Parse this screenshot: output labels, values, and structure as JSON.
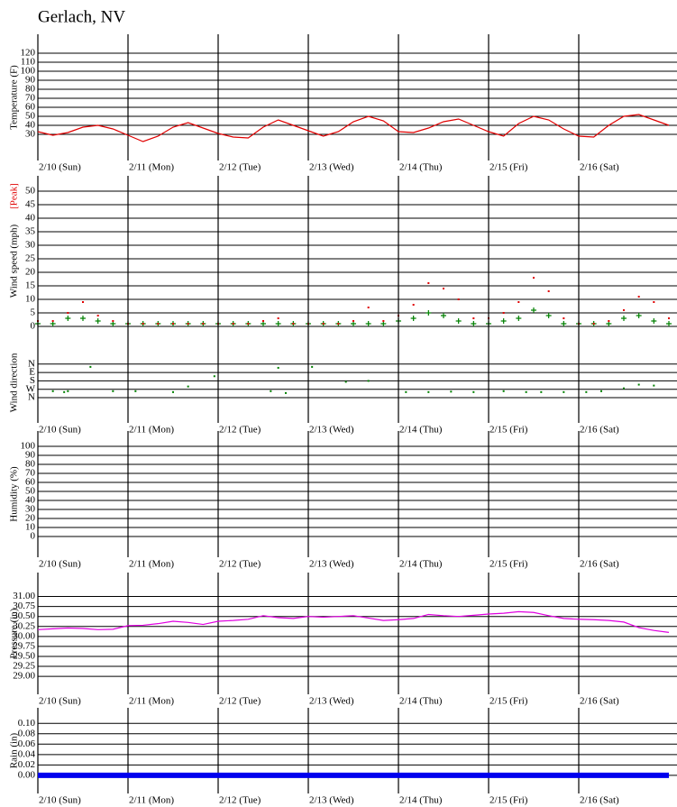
{
  "title": "Gerlach, NV",
  "chart_data": [
    {
      "type": "line",
      "xlim": [
        0,
        168
      ],
      "ylim": [
        1,
        141
      ],
      "yticks": [
        30,
        40,
        50,
        60,
        70,
        80,
        90,
        100,
        110,
        120
      ],
      "xticks": [
        {
          "value": 0,
          "label": "2/10 (Sun)"
        },
        {
          "value": 24,
          "label": "2/11 (Mon)"
        },
        {
          "value": 48,
          "label": "2/12 (Tue)"
        },
        {
          "value": 72,
          "label": "2/13 (Wed)"
        },
        {
          "value": 96,
          "label": "2/14 (Thu)"
        },
        {
          "value": 120,
          "label": "2/15 (Fri)"
        },
        {
          "value": 144,
          "label": "2/16 (Sat)"
        }
      ],
      "x": [
        0,
        4,
        8,
        12,
        16,
        20,
        24,
        28,
        32,
        36,
        40,
        44,
        48,
        52,
        56,
        60,
        64,
        68,
        72,
        76,
        80,
        84,
        88,
        92,
        96,
        100,
        104,
        108,
        112,
        116,
        120,
        124,
        128,
        132,
        136,
        140,
        144,
        148,
        152,
        156,
        160,
        164,
        168
      ],
      "series": [
        {
          "name": "Temperature (F)",
          "color": "#e00000",
          "values": [
            33,
            29,
            32,
            38,
            40,
            36,
            29,
            22,
            28,
            38,
            43,
            37,
            31,
            27,
            26,
            38,
            46,
            40,
            34,
            28,
            33,
            44,
            50,
            45,
            33,
            32,
            37,
            44,
            47,
            40,
            33,
            28,
            42,
            50,
            46,
            36,
            28,
            27,
            40,
            50,
            52,
            46,
            40
          ]
        }
      ]
    },
    {
      "type": "scatter",
      "xlim": [
        0,
        168
      ],
      "ylim": [
        0,
        55
      ],
      "yticks": [
        0,
        5,
        10,
        15,
        20,
        25,
        30,
        35,
        40,
        45,
        50
      ],
      "x": [
        0,
        4,
        8,
        12,
        16,
        20,
        24,
        28,
        32,
        36,
        40,
        44,
        48,
        52,
        56,
        60,
        64,
        68,
        72,
        76,
        80,
        84,
        88,
        92,
        96,
        100,
        104,
        108,
        112,
        116,
        120,
        124,
        128,
        132,
        136,
        140,
        144,
        148,
        152,
        156,
        160,
        164,
        168
      ],
      "series": [
        {
          "name": "Wind speed (mph)",
          "color": "#008000",
          "values": [
            1,
            1,
            3,
            3,
            2,
            1,
            1,
            1,
            1,
            1,
            1,
            1,
            1,
            1,
            1,
            1,
            1,
            1,
            1,
            1,
            1,
            1,
            1,
            1,
            2,
            3,
            5,
            4,
            2,
            1,
            1,
            2,
            3,
            6,
            4,
            1,
            1,
            1,
            1,
            3,
            4,
            2,
            1
          ]
        },
        {
          "name": "[Peak]",
          "color": "#e00000",
          "values": [
            2,
            2,
            5,
            9,
            4,
            2,
            1,
            1,
            1,
            1,
            1,
            1,
            1,
            1,
            1,
            2,
            3,
            1,
            1,
            1,
            1,
            2,
            7,
            2,
            4,
            8,
            16,
            14,
            10,
            3,
            3,
            5,
            9,
            18,
            13,
            3,
            1,
            1,
            2,
            6,
            11,
            9,
            3
          ]
        }
      ]
    },
    {
      "type": "scatter",
      "xlim": [
        0,
        168
      ],
      "ylim": [
        -270,
        590
      ],
      "yticks": [
        {
          "value": 0,
          "label": "N"
        },
        {
          "value": 90,
          "label": "W"
        },
        {
          "value": 180,
          "label": "S"
        },
        {
          "value": 270,
          "label": "E"
        },
        {
          "value": 360,
          "label": "N"
        }
      ],
      "xticks": [
        {
          "value": 0,
          "label": "2/10 (Sun)"
        },
        {
          "value": 24,
          "label": "2/11 (Mon)"
        },
        {
          "value": 48,
          "label": "2/12 (Tue)"
        },
        {
          "value": 72,
          "label": "2/13 (Wed)"
        },
        {
          "value": 96,
          "label": "2/14 (Thu)"
        },
        {
          "value": 120,
          "label": "2/15 (Fri)"
        },
        {
          "value": 144,
          "label": "2/16 (Sat)"
        }
      ],
      "x": [
        4,
        7,
        8,
        14,
        20,
        26,
        36,
        40,
        47,
        62,
        64,
        66,
        73,
        82,
        88,
        98,
        104,
        110,
        116,
        124,
        130,
        134,
        140,
        146,
        150,
        156,
        160,
        164
      ],
      "series": [
        {
          "name": "Wind direction",
          "color": "#008000",
          "values": [
            70,
            60,
            70,
            330,
            70,
            70,
            60,
            120,
            230,
            70,
            320,
            50,
            330,
            170,
            180,
            60,
            60,
            65,
            60,
            70,
            60,
            60,
            60,
            60,
            70,
            100,
            140,
            130
          ]
        }
      ]
    },
    {
      "type": "line",
      "xlim": [
        0,
        168
      ],
      "ylim": [
        -23,
        117
      ],
      "yticks": [
        0,
        10,
        20,
        30,
        40,
        50,
        60,
        70,
        80,
        90,
        100
      ],
      "ylabel": "Humidity (%)",
      "xticks": [
        {
          "value": 0,
          "label": "2/10 (Sun)"
        },
        {
          "value": 24,
          "label": "2/11 (Mon)"
        },
        {
          "value": 48,
          "label": "2/12 (Tue)"
        },
        {
          "value": 72,
          "label": "2/13 (Wed)"
        },
        {
          "value": 96,
          "label": "2/14 (Thu)"
        },
        {
          "value": 120,
          "label": "2/15 (Fri)"
        },
        {
          "value": 144,
          "label": "2/16 (Sat)"
        }
      ],
      "series": []
    },
    {
      "type": "line",
      "xlim": [
        0,
        168
      ],
      "ylim": [
        28.55,
        31.6
      ],
      "yticks": [
        {
          "value": 29,
          "label": "29.00"
        },
        {
          "value": 29.25,
          "label": "29.25"
        },
        {
          "value": 29.5,
          "label": "29.50"
        },
        {
          "value": 29.75,
          "label": "29.75"
        },
        {
          "value": 30,
          "label": "30.00"
        },
        {
          "value": 30.25,
          "label": "30.25"
        },
        {
          "value": 30.5,
          "label": "30.50"
        },
        {
          "value": 30.75,
          "label": "30.75"
        },
        {
          "value": 31,
          "label": "31.00"
        }
      ],
      "xticks": [
        {
          "value": 0,
          "label": "2/10 (Sun)"
        },
        {
          "value": 24,
          "label": "2/11 (Mon)"
        },
        {
          "value": 48,
          "label": "2/12 (Tue)"
        },
        {
          "value": 72,
          "label": "2/13 (Wed)"
        },
        {
          "value": 96,
          "label": "2/14 (Thu)"
        },
        {
          "value": 120,
          "label": "2/15 (Fri)"
        },
        {
          "value": 144,
          "label": "2/16 (Sat)"
        }
      ],
      "x": [
        0,
        4,
        8,
        12,
        16,
        20,
        24,
        28,
        32,
        36,
        40,
        44,
        48,
        52,
        56,
        60,
        64,
        68,
        72,
        76,
        80,
        84,
        88,
        92,
        96,
        100,
        104,
        108,
        112,
        116,
        120,
        124,
        128,
        132,
        136,
        140,
        144,
        148,
        152,
        156,
        160,
        164,
        168
      ],
      "series": [
        {
          "name": "Pressure (in)",
          "color": "#e000e0",
          "values": [
            30.17,
            30.19,
            30.21,
            30.2,
            30.17,
            30.18,
            30.27,
            30.28,
            30.32,
            30.38,
            30.35,
            30.3,
            30.38,
            30.4,
            30.43,
            30.52,
            30.47,
            30.45,
            30.5,
            30.48,
            30.5,
            30.52,
            30.46,
            30.4,
            30.42,
            30.45,
            30.55,
            30.52,
            30.5,
            30.53,
            30.56,
            30.58,
            30.62,
            30.6,
            30.52,
            30.45,
            30.43,
            30.42,
            30.4,
            30.36,
            30.22,
            30.15,
            30.1
          ]
        }
      ]
    },
    {
      "type": "line",
      "xlim": [
        0,
        168
      ],
      "ylim": [
        -0.035,
        0.13
      ],
      "yticks": [
        {
          "value": 0,
          "label": "0.00"
        },
        {
          "value": 0.02,
          "label": "0.02"
        },
        {
          "value": 0.04,
          "label": "0.04"
        },
        {
          "value": 0.06,
          "label": "0.06"
        },
        {
          "value": 0.08,
          "label": "0.08"
        },
        {
          "value": 0.1,
          "label": "0.10"
        }
      ],
      "xticks": [
        {
          "value": 0,
          "label": "2/10 (Sun)"
        },
        {
          "value": 24,
          "label": "2/11 (Mon)"
        },
        {
          "value": 48,
          "label": "2/12 (Tue)"
        },
        {
          "value": 72,
          "label": "2/13 (Wed)"
        },
        {
          "value": 96,
          "label": "2/14 (Thu)"
        },
        {
          "value": 120,
          "label": "2/15 (Fri)"
        },
        {
          "value": 144,
          "label": "2/16 (Sat)"
        }
      ],
      "x": [
        0,
        168
      ],
      "series": [
        {
          "name": "Rain (in)",
          "color": "#0000ee",
          "width": 6,
          "values": [
            0,
            0
          ]
        }
      ]
    }
  ]
}
